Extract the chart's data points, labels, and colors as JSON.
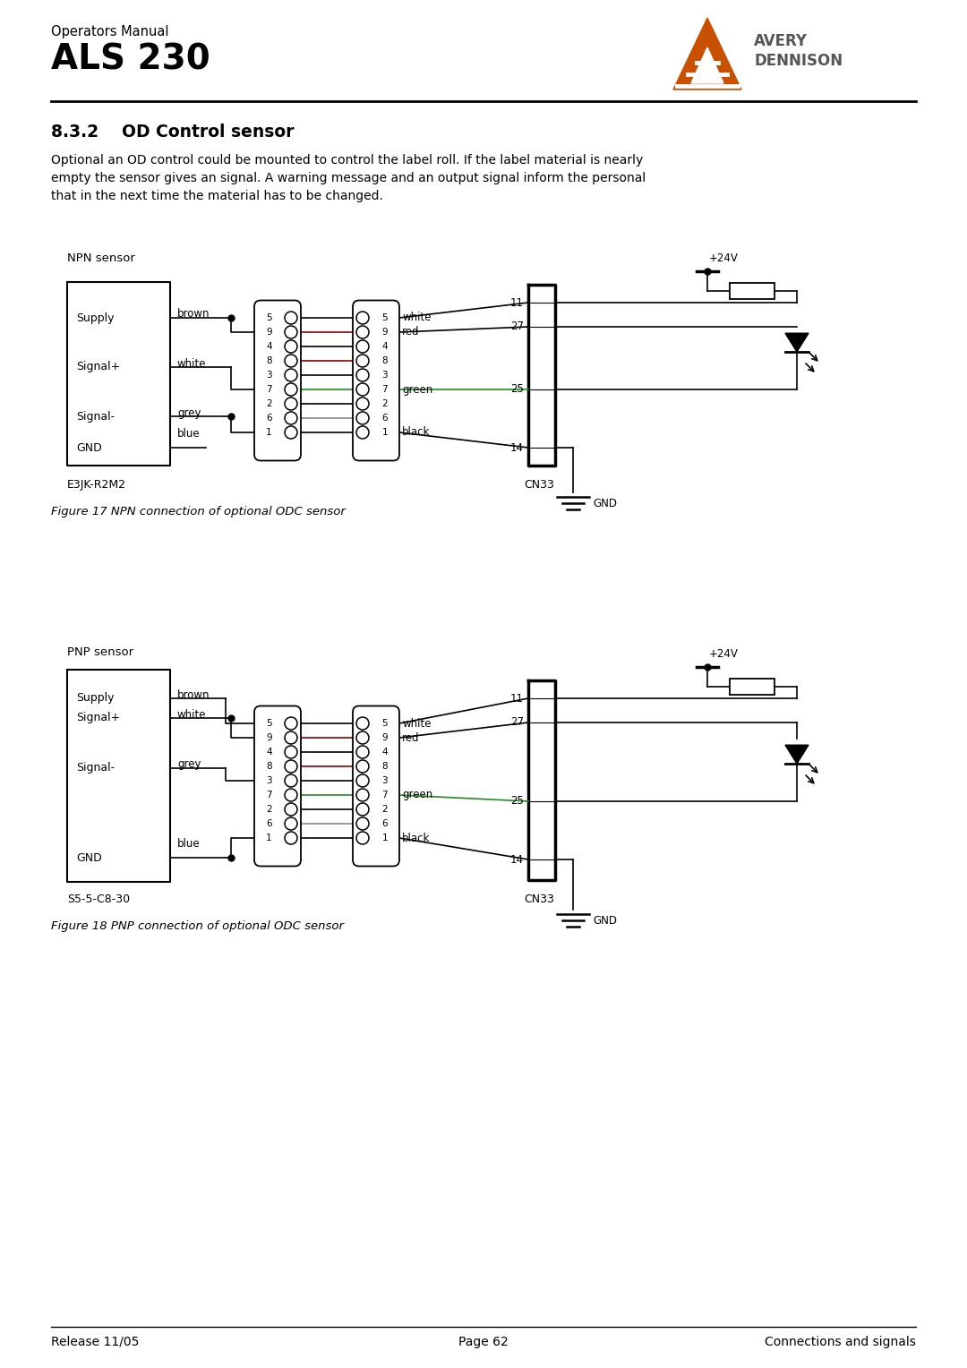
{
  "title_small": "Operators Manual",
  "title_large": "ALS 230",
  "section_title": "8.3.2    OD Control sensor",
  "body_text": "Optional an OD control could be mounted to control the label roll. If the label material is nearly\nempty the sensor gives an signal. A warning message and an output signal inform the personal\nthat in the next time the material has to be changed.",
  "fig1_caption": "Figure 17 NPN connection of optional ODC sensor",
  "fig2_caption": "Figure 18 PNP connection of optional ODC sensor",
  "footer_left": "Release 11/05",
  "footer_center": "Page 62",
  "footer_right": "Connections and signals",
  "bg_color": "#ffffff",
  "text_color": "#000000",
  "line_color": "#000000",
  "red_color": "#8B0000",
  "grey_color": "#888888",
  "avery_orange": "#C85000",
  "npn_label": "NPN sensor",
  "pnp_label": "PNP sensor",
  "e3jk_label": "E3JK-R2M2",
  "s5_label": "S5-5-C8-30",
  "cn33_label": "CN33",
  "supply_label": "Supply",
  "signalp_label": "Signal+",
  "signalm_label": "Signal-",
  "gnd_label": "GND",
  "brown_label": "brown",
  "white_label": "white",
  "grey_label": "grey",
  "blue_label": "blue",
  "wire_white": "white",
  "wire_red": "red",
  "wire_green": "green",
  "wire_black": "black",
  "v24_label": "+24V",
  "gnd_sym_label": "GND"
}
